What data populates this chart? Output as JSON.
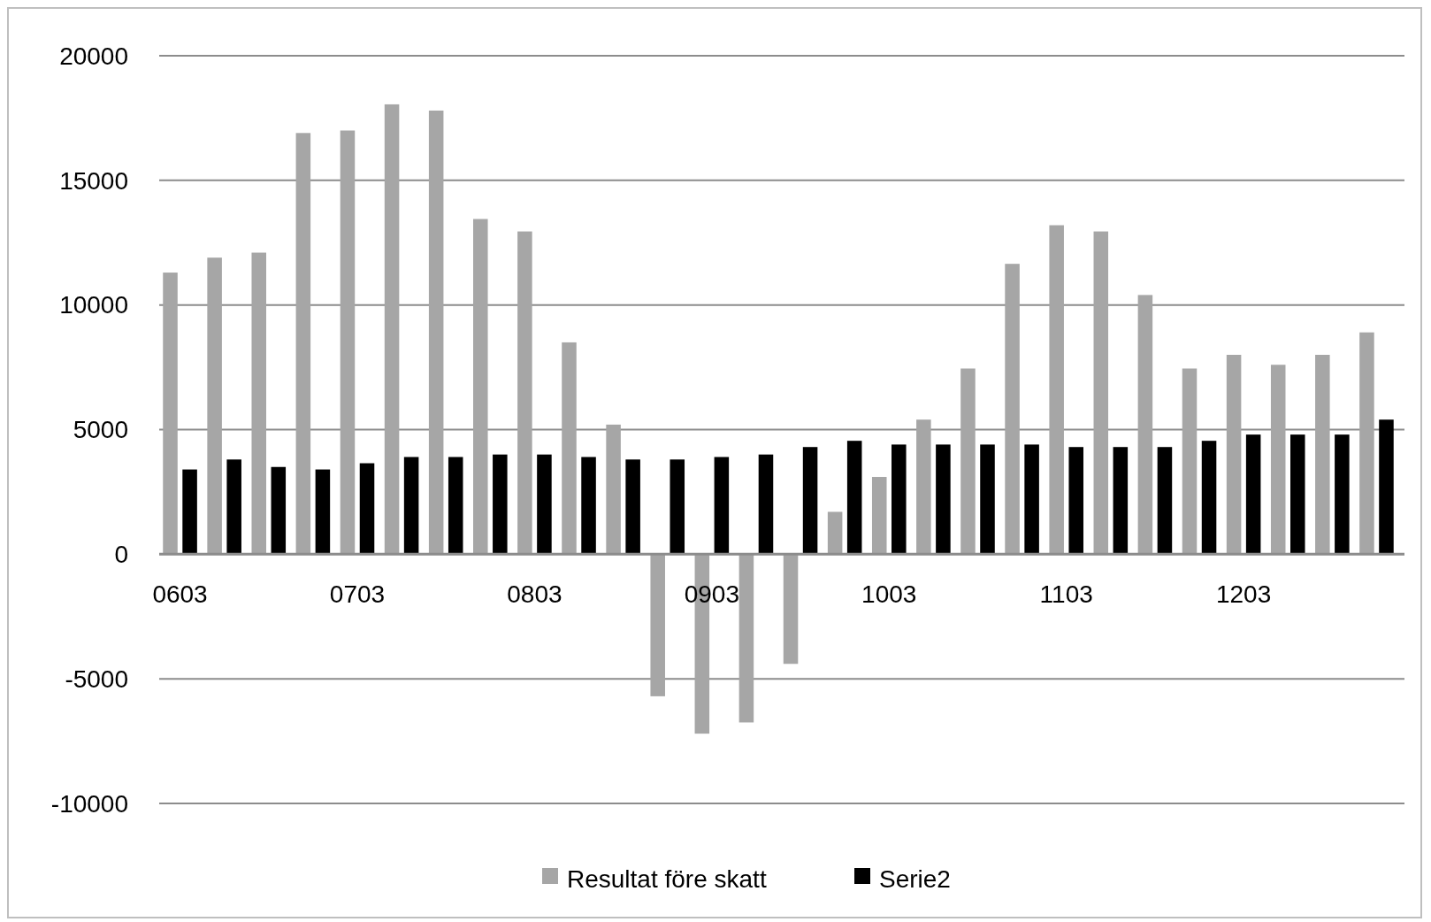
{
  "chart_data": {
    "type": "bar",
    "categories": [
      "0603",
      null,
      null,
      null,
      "0703",
      null,
      null,
      null,
      "0803",
      null,
      null,
      null,
      "0903",
      null,
      null,
      null,
      "1003",
      null,
      null,
      null,
      "1103",
      null,
      null,
      null,
      "1203",
      null,
      null,
      null
    ],
    "series": [
      {
        "name": "Resultat före skatt",
        "color": "#a6a6a6",
        "values": [
          11300,
          11900,
          12100,
          16900,
          17000,
          18050,
          17800,
          13450,
          12950,
          8500,
          5200,
          -5700,
          -7200,
          -6750,
          -4400,
          1700,
          3100,
          5400,
          7450,
          11650,
          13200,
          12950,
          10400,
          7450,
          8000,
          7600,
          8000,
          8900
        ]
      },
      {
        "name": "Serie2",
        "color": "#000000",
        "values": [
          3400,
          3800,
          3500,
          3400,
          3650,
          3900,
          3900,
          4000,
          4000,
          3900,
          3800,
          3800,
          3900,
          4000,
          4300,
          4550,
          4400,
          4400,
          4400,
          4400,
          4300,
          4300,
          4300,
          4550,
          4800,
          4800,
          4800,
          5400
        ]
      }
    ],
    "ylim": [
      -10000,
      20000
    ],
    "yticks": [
      -10000,
      -5000,
      0,
      5000,
      10000,
      15000,
      20000
    ],
    "grid": "y",
    "legend": "bottom"
  }
}
